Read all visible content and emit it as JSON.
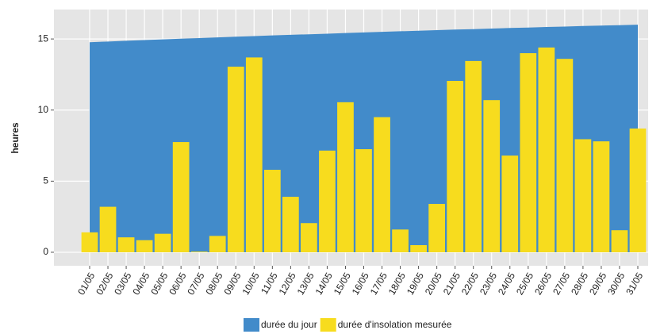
{
  "chart_data": {
    "type": "bar",
    "y_label": "heures",
    "categories": [
      "01/05",
      "02/05",
      "03/05",
      "04/05",
      "05/05",
      "06/05",
      "07/05",
      "08/05",
      "09/05",
      "10/05",
      "11/05",
      "12/05",
      "13/05",
      "14/05",
      "15/05",
      "16/05",
      "17/05",
      "18/05",
      "19/05",
      "20/05",
      "21/05",
      "22/05",
      "23/05",
      "24/05",
      "25/05",
      "26/05",
      "27/05",
      "28/05",
      "29/05",
      "30/05",
      "31/05"
    ],
    "series": [
      {
        "name": "durée du jour",
        "type": "area",
        "color": "#428bca",
        "values": [
          14.77,
          14.82,
          14.87,
          14.92,
          14.97,
          15.02,
          15.06,
          15.11,
          15.16,
          15.2,
          15.25,
          15.29,
          15.33,
          15.37,
          15.42,
          15.46,
          15.5,
          15.54,
          15.58,
          15.62,
          15.66,
          15.69,
          15.73,
          15.77,
          15.8,
          15.84,
          15.87,
          15.91,
          15.94,
          15.97,
          16.0
        ]
      },
      {
        "name": "durée d'insolation mesurée",
        "type": "bar",
        "color": "#f7dc1e",
        "values": [
          1.4,
          3.2,
          1.05,
          0.85,
          1.3,
          7.75,
          0.05,
          1.15,
          13.05,
          13.7,
          5.8,
          3.9,
          2.05,
          7.15,
          10.55,
          7.25,
          9.5,
          1.6,
          0.5,
          3.4,
          12.05,
          13.45,
          10.7,
          6.8,
          14.0,
          14.4,
          13.6,
          7.95,
          7.8,
          1.55,
          8.7
        ]
      }
    ],
    "ylim": [
      -0.95,
      17.07
    ],
    "yticks": [
      0,
      5,
      10,
      15
    ],
    "grid": true,
    "legend": "bottom"
  }
}
